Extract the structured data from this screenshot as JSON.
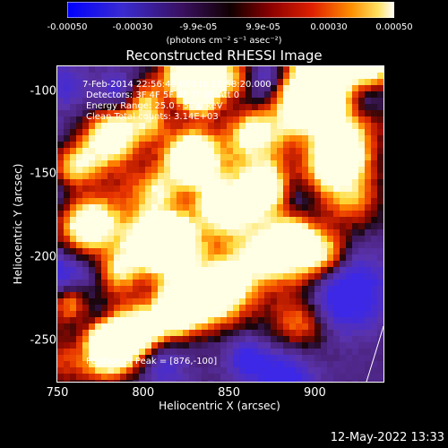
{
  "colorbar": {
    "tick_labels": [
      "-0.00050",
      "-0.00030",
      "-9.9e-05",
      "9.9e-05",
      "0.00030",
      "0.00050"
    ],
    "tick_values": [
      -0.0005,
      -0.0003,
      -9.9e-05,
      9.9e-05,
      0.0003,
      0.0005
    ],
    "range": [
      -0.0005,
      0.0005
    ],
    "unit_label": "(photons cm⁻² s⁻¹ asec⁻²)",
    "colors": {
      "low": "#0000ff",
      "mid": "#000000",
      "high": "#ffffff"
    }
  },
  "chart_data": {
    "type": "heatmap",
    "title": "Reconstructed RHESSI Image",
    "xlabel": "Heliocentric X (arcsec)",
    "ylabel": "Heliocentric Y (arcsec)",
    "xlim": [
      750,
      940
    ],
    "ylim": [
      -275,
      -85
    ],
    "xticks": [
      750,
      800,
      850,
      900
    ],
    "yticks": [
      -100,
      -150,
      -200,
      -250
    ],
    "x_tick_labels": [
      "750",
      "800",
      "850",
      "900"
    ],
    "y_tick_labels": [
      "-100",
      "-150",
      "-200",
      "-250"
    ],
    "peak_position": [
      876,
      -100
    ],
    "annotations": {
      "time_range": "7-Feb-2014 22:56:40.000 to 22:58:20.000",
      "detectors": "Detectors: 3F 4F 5F 6F 7F 8F  Att 0",
      "energy": "Energy Range: 25.0 - 50.0 keV",
      "clean": "Clean     Total counts: 3.14E+03",
      "peak": "Position of Peak = [876,-100]"
    }
  },
  "footer": {
    "date": "12-May-2022 13:33"
  }
}
